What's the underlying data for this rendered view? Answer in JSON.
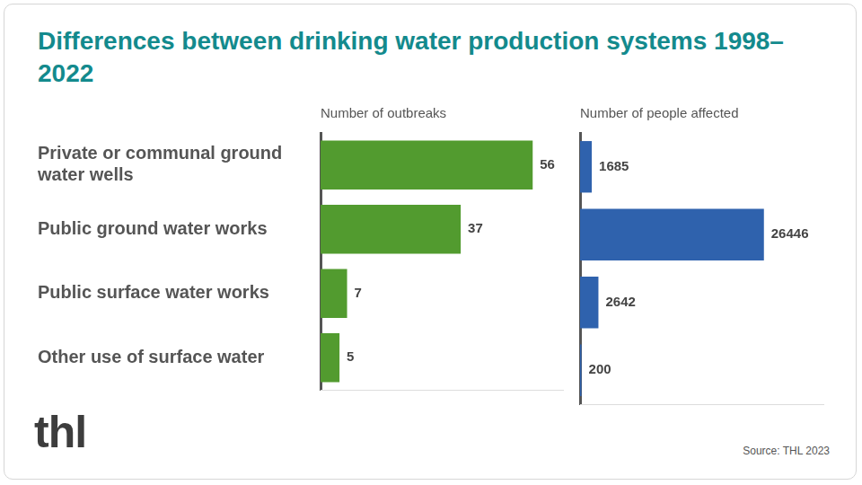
{
  "title": "Differences between drinking water production systems 1998–2022",
  "logo": "thl",
  "source": "Source: THL 2023",
  "chart_data": [
    {
      "type": "bar",
      "orientation": "horizontal",
      "title": "Number of outbreaks",
      "categories": [
        "Private or communal ground water wells",
        "Public ground water works",
        "Public surface water works",
        "Other use of surface water"
      ],
      "values": [
        56,
        37,
        7,
        5
      ],
      "color": "#529b2f",
      "xlim": [
        0,
        64
      ],
      "data_labels": true,
      "tick_labels": "y",
      "grid": false
    },
    {
      "type": "bar",
      "orientation": "horizontal",
      "title": "Number of people affected",
      "categories": [
        "Private or communal ground water wells",
        "Public ground water works",
        "Public surface water works",
        "Other use of surface water"
      ],
      "values": [
        1685,
        26446,
        2642,
        200
      ],
      "color": "#2f62ad",
      "xlim": [
        0,
        35000
      ],
      "data_labels": true,
      "tick_labels": false,
      "grid": false
    }
  ]
}
